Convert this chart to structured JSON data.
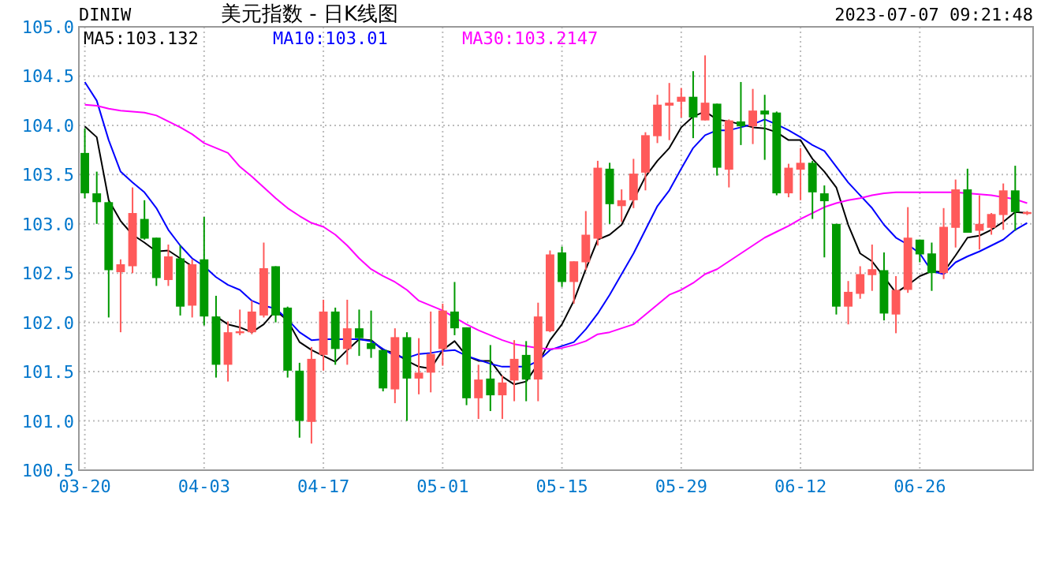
{
  "chart_data": {
    "type": "candlestick",
    "title": "美元指数 - 日K线图",
    "annotations": [
      "DINIW",
      "2023-07-07 09:21:48"
    ],
    "categories": [
      "03-20",
      null,
      null,
      null,
      null,
      null,
      null,
      null,
      null,
      null,
      "04-03",
      null,
      null,
      null,
      null,
      null,
      null,
      null,
      null,
      null,
      "04-17",
      null,
      null,
      null,
      null,
      null,
      null,
      null,
      null,
      null,
      "05-01",
      null,
      null,
      null,
      null,
      null,
      null,
      null,
      null,
      null,
      "05-15",
      null,
      null,
      null,
      null,
      null,
      null,
      null,
      null,
      null,
      "05-29",
      null,
      null,
      null,
      null,
      null,
      null,
      null,
      null,
      null,
      "06-12",
      null,
      null,
      null,
      null,
      null,
      null,
      null,
      null,
      null,
      "06-26",
      null,
      null,
      null,
      null,
      null,
      null,
      null,
      null,
      null
    ],
    "ohlc": [
      [
        103.72,
        103.97,
        103.26,
        103.31
      ],
      [
        103.31,
        103.53,
        103.0,
        103.22
      ],
      [
        103.22,
        103.23,
        102.05,
        102.53
      ],
      [
        102.51,
        102.64,
        101.9,
        102.59
      ],
      [
        102.57,
        103.37,
        102.5,
        103.11
      ],
      [
        103.05,
        103.24,
        102.84,
        102.85
      ],
      [
        102.86,
        102.86,
        102.37,
        102.45
      ],
      [
        102.43,
        102.79,
        102.37,
        102.67
      ],
      [
        102.65,
        102.78,
        102.07,
        102.16
      ],
      [
        102.17,
        102.64,
        102.05,
        102.59
      ],
      [
        102.64,
        103.07,
        101.97,
        102.06
      ],
      [
        102.06,
        102.27,
        101.44,
        101.57
      ],
      [
        101.57,
        102.01,
        101.4,
        101.9
      ],
      [
        101.89,
        102.13,
        101.87,
        101.91
      ],
      [
        101.9,
        102.22,
        101.88,
        102.11
      ],
      [
        102.07,
        102.81,
        102.05,
        102.55
      ],
      [
        102.57,
        102.57,
        102.0,
        102.07
      ],
      [
        102.15,
        102.16,
        101.44,
        101.51
      ],
      [
        101.51,
        101.59,
        100.83,
        101.0
      ],
      [
        100.99,
        101.75,
        100.77,
        101.63
      ],
      [
        101.67,
        102.23,
        101.51,
        102.11
      ],
      [
        102.11,
        102.15,
        101.57,
        101.73
      ],
      [
        101.73,
        102.23,
        101.57,
        101.94
      ],
      [
        101.94,
        102.13,
        101.66,
        101.84
      ],
      [
        101.79,
        102.12,
        101.64,
        101.73
      ],
      [
        101.72,
        101.72,
        101.3,
        101.33
      ],
      [
        101.32,
        101.94,
        101.18,
        101.85
      ],
      [
        101.85,
        101.9,
        101.0,
        101.43
      ],
      [
        101.43,
        101.84,
        101.27,
        101.49
      ],
      [
        101.49,
        102.11,
        101.29,
        101.68
      ],
      [
        101.73,
        102.19,
        101.56,
        102.12
      ],
      [
        102.11,
        102.41,
        101.87,
        101.94
      ],
      [
        101.95,
        101.95,
        101.16,
        101.23
      ],
      [
        101.23,
        101.57,
        101.02,
        101.42
      ],
      [
        101.43,
        101.77,
        101.1,
        101.26
      ],
      [
        101.26,
        101.46,
        101.02,
        101.39
      ],
      [
        101.41,
        101.82,
        101.2,
        101.63
      ],
      [
        101.67,
        101.81,
        101.2,
        101.42
      ],
      [
        101.42,
        102.2,
        101.2,
        102.06
      ],
      [
        101.91,
        102.73,
        101.9,
        102.69
      ],
      [
        102.71,
        102.77,
        102.36,
        102.41
      ],
      [
        102.41,
        102.62,
        102.19,
        102.62
      ],
      [
        102.61,
        103.13,
        102.53,
        102.89
      ],
      [
        102.85,
        103.64,
        102.78,
        103.57
      ],
      [
        103.56,
        103.62,
        103.0,
        103.2
      ],
      [
        103.18,
        103.35,
        103.02,
        103.24
      ],
      [
        103.24,
        103.66,
        103.16,
        103.51
      ],
      [
        103.52,
        103.93,
        103.34,
        103.9
      ],
      [
        103.89,
        104.31,
        103.82,
        104.21
      ],
      [
        104.2,
        104.43,
        103.85,
        104.23
      ],
      [
        104.24,
        104.38,
        104.08,
        104.29
      ],
      [
        104.29,
        104.55,
        103.87,
        104.08
      ],
      [
        104.05,
        104.71,
        104.05,
        104.23
      ],
      [
        104.22,
        104.22,
        103.49,
        103.57
      ],
      [
        103.55,
        104.06,
        103.37,
        104.05
      ],
      [
        104.04,
        104.44,
        103.8,
        103.99
      ],
      [
        103.99,
        104.37,
        103.81,
        104.15
      ],
      [
        104.15,
        104.31,
        103.65,
        104.11
      ],
      [
        104.13,
        104.14,
        103.29,
        103.31
      ],
      [
        103.31,
        103.61,
        103.27,
        103.57
      ],
      [
        103.55,
        103.77,
        103.24,
        103.62
      ],
      [
        103.62,
        103.64,
        103.05,
        103.32
      ],
      [
        103.31,
        103.39,
        102.66,
        103.23
      ],
      [
        103.0,
        103.0,
        102.08,
        102.16
      ],
      [
        102.16,
        102.42,
        101.98,
        102.31
      ],
      [
        102.29,
        102.57,
        102.24,
        102.49
      ],
      [
        102.48,
        102.79,
        102.32,
        102.54
      ],
      [
        102.53,
        102.71,
        102.02,
        102.09
      ],
      [
        102.08,
        102.47,
        101.89,
        102.33
      ],
      [
        102.33,
        103.17,
        102.3,
        102.86
      ],
      [
        102.84,
        102.84,
        102.61,
        102.69
      ],
      [
        102.7,
        102.81,
        102.32,
        102.5
      ],
      [
        102.5,
        103.16,
        102.44,
        102.97
      ],
      [
        102.96,
        103.45,
        102.76,
        103.35
      ],
      [
        103.35,
        103.56,
        102.91,
        102.91
      ],
      [
        102.93,
        103.29,
        102.74,
        103.0
      ],
      [
        102.96,
        103.11,
        102.89,
        103.1
      ],
      [
        103.09,
        103.41,
        102.94,
        103.34
      ],
      [
        103.34,
        103.59,
        102.93,
        103.12
      ],
      [
        103.1,
        103.13,
        103.09,
        103.12
      ]
    ],
    "series": [
      {
        "name": "MA5:103.132",
        "type": "line",
        "color": "#000000",
        "values": [
          103.99,
          103.88,
          103.24,
          103.03,
          102.89,
          102.81,
          102.72,
          102.73,
          102.65,
          102.57,
          null,
          102.06,
          101.98,
          101.95,
          101.9,
          101.98,
          102.12,
          102.02,
          101.8,
          101.72,
          101.66,
          101.6,
          101.72,
          101.83,
          101.82,
          101.72,
          101.69,
          101.61,
          101.55,
          101.53,
          101.72,
          101.81,
          101.66,
          101.61,
          101.61,
          101.45,
          101.37,
          101.4,
          101.58,
          101.82,
          101.98,
          102.22,
          102.54,
          102.84,
          102.89,
          102.99,
          103.24,
          103.48,
          103.64,
          103.77,
          103.98,
          104.09,
          104.14,
          104.06,
          104.04,
          104.01,
          103.98,
          103.97,
          103.93,
          103.85,
          103.85,
          103.66,
          103.53,
          103.37,
          102.99,
          102.7,
          102.62,
          102.46,
          102.3,
          102.38,
          102.47,
          102.52,
          102.51,
          102.68,
          102.86,
          102.88,
          102.94,
          103.02,
          103.12,
          103.11
        ]
      },
      {
        "name": "MA10:103.01",
        "type": "line",
        "color": "#0000ff",
        "values": [
          104.44,
          104.25,
          103.85,
          103.53,
          103.42,
          103.32,
          103.16,
          102.94,
          102.78,
          102.65,
          102.57,
          102.46,
          102.38,
          102.33,
          102.22,
          102.17,
          102.14,
          102.03,
          101.9,
          101.82,
          101.83,
          101.83,
          101.83,
          101.83,
          101.81,
          101.73,
          101.66,
          101.64,
          101.68,
          101.69,
          101.71,
          101.72,
          101.66,
          101.62,
          101.58,
          101.55,
          101.55,
          101.55,
          101.61,
          101.72,
          101.76,
          101.8,
          101.93,
          102.09,
          102.28,
          102.49,
          102.7,
          102.94,
          103.18,
          103.34,
          103.56,
          103.77,
          103.9,
          103.95,
          103.95,
          103.98,
          104.01,
          104.06,
          104.01,
          103.95,
          103.88,
          103.8,
          103.74,
          103.58,
          103.42,
          103.29,
          103.16,
          102.99,
          102.86,
          102.79,
          102.7,
          102.52,
          102.49,
          102.61,
          102.67,
          102.72,
          102.78,
          102.84,
          102.94,
          103.01
        ]
      },
      {
        "name": "MA30:103.2147",
        "type": "line",
        "color": "#ff00ff",
        "values": [
          104.21,
          104.2,
          104.17,
          104.15,
          104.14,
          104.13,
          104.1,
          104.04,
          103.98,
          103.91,
          103.82,
          103.77,
          103.72,
          103.58,
          103.48,
          103.37,
          103.26,
          103.16,
          103.08,
          103.01,
          102.97,
          102.89,
          102.78,
          102.65,
          102.54,
          102.47,
          102.41,
          102.33,
          102.22,
          102.17,
          102.12,
          102.05,
          101.98,
          101.92,
          101.87,
          101.82,
          101.78,
          101.76,
          101.74,
          101.73,
          101.74,
          101.77,
          101.81,
          101.88,
          101.9,
          101.94,
          101.98,
          102.08,
          102.18,
          102.28,
          102.33,
          102.4,
          102.49,
          102.54,
          102.62,
          102.7,
          102.78,
          102.86,
          102.92,
          102.98,
          103.05,
          103.11,
          103.17,
          103.21,
          103.24,
          103.26,
          103.29,
          103.31,
          103.32,
          103.32,
          103.32,
          103.32,
          103.32,
          103.32,
          103.31,
          103.3,
          103.29,
          103.27,
          103.25,
          103.21
        ]
      }
    ],
    "ylim": [
      100.5,
      105.0
    ],
    "yticks": [
      {
        "value": 100.5,
        "label": "100.5"
      },
      {
        "value": 101.0,
        "label": "101.0"
      },
      {
        "value": 101.5,
        "label": "101.5"
      },
      {
        "value": 102.0,
        "label": "102.0"
      },
      {
        "value": 102.5,
        "label": "102.5"
      },
      {
        "value": 103.0,
        "label": "103.0"
      },
      {
        "value": 103.5,
        "label": "103.5"
      },
      {
        "value": 104.0,
        "label": "104.0"
      },
      {
        "value": 104.5,
        "label": "104.5"
      },
      {
        "value": 105.0,
        "label": "105.0"
      }
    ],
    "grid": true,
    "legend": "top left"
  }
}
